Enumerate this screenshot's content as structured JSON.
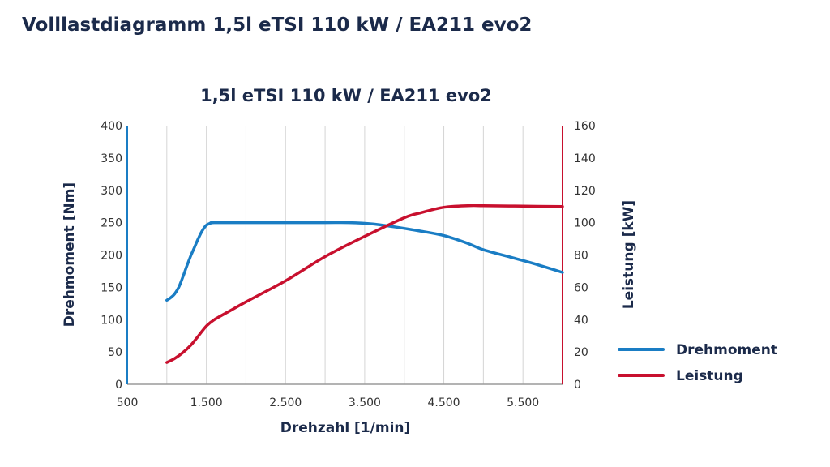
{
  "page": {
    "title": "Volllastdiagramm 1,5l eTSI 110 kW / EA211 evo2"
  },
  "chart_data": {
    "type": "line",
    "title": "1,5l eTSI 110 kW / EA211 evo2",
    "xlabel": "Drehzahl [1/min]",
    "ylabel_left": "Drehmoment [Nm]",
    "ylabel_right": "Leistung [kW]",
    "xlim": [
      500,
      6000
    ],
    "ylim_left": [
      0,
      400
    ],
    "ylim_right": [
      0,
      160
    ],
    "x_ticks": [
      500,
      1500,
      2500,
      3500,
      4500,
      5500
    ],
    "x_tick_labels": [
      "500",
      "1.500",
      "2.500",
      "3.500",
      "4.500",
      "5.500"
    ],
    "y_left_ticks": [
      0,
      50,
      100,
      150,
      200,
      250,
      300,
      350,
      400
    ],
    "y_left_tick_labels": [
      "0",
      "50",
      "100",
      "150",
      "200",
      "250",
      "300",
      "350",
      "400"
    ],
    "y_right_ticks": [
      0,
      20,
      40,
      60,
      80,
      100,
      120,
      140,
      160
    ],
    "y_right_tick_labels": [
      "0",
      "20",
      "40",
      "60",
      "80",
      "100",
      "120",
      "140",
      "160"
    ],
    "grid": {
      "vertical": true,
      "horizontal": false
    },
    "x_gridlines": [
      1000,
      1500,
      2000,
      2500,
      3000,
      3500,
      4000,
      4500,
      5000,
      5500
    ],
    "legend_position": "right",
    "colors": {
      "torque": "#1a7dc4",
      "power": "#c8102e",
      "text": "#1b2a4a"
    },
    "series": [
      {
        "name": "Drehmoment",
        "axis": "left",
        "color": "#1a7dc4",
        "x": [
          1000,
          1050,
          1100,
          1150,
          1200,
          1250,
          1300,
          1350,
          1400,
          1450,
          1500,
          1550,
          1600,
          2000,
          2500,
          3000,
          3300,
          3600,
          3900,
          4200,
          4500,
          4800,
          5000,
          5300,
          5600,
          6000
        ],
        "y": [
          130,
          134,
          140,
          150,
          165,
          182,
          198,
          212,
          226,
          238,
          246,
          249,
          250,
          250,
          250,
          250,
          250,
          248,
          243,
          237,
          230,
          218,
          208,
          198,
          188,
          173
        ]
      },
      {
        "name": "Leistung",
        "axis": "right",
        "color": "#c8102e",
        "x": [
          1000,
          1100,
          1200,
          1300,
          1400,
          1500,
          1600,
          1800,
          2000,
          2500,
          3000,
          3500,
          4000,
          4200,
          4500,
          4800,
          5000,
          5500,
          6000
        ],
        "y": [
          13.5,
          16,
          19.5,
          24,
          30,
          36,
          40,
          45.5,
          51,
          64,
          79,
          91.5,
          103,
          106,
          109.5,
          110.5,
          110.5,
          110.2,
          110
        ]
      }
    ]
  }
}
